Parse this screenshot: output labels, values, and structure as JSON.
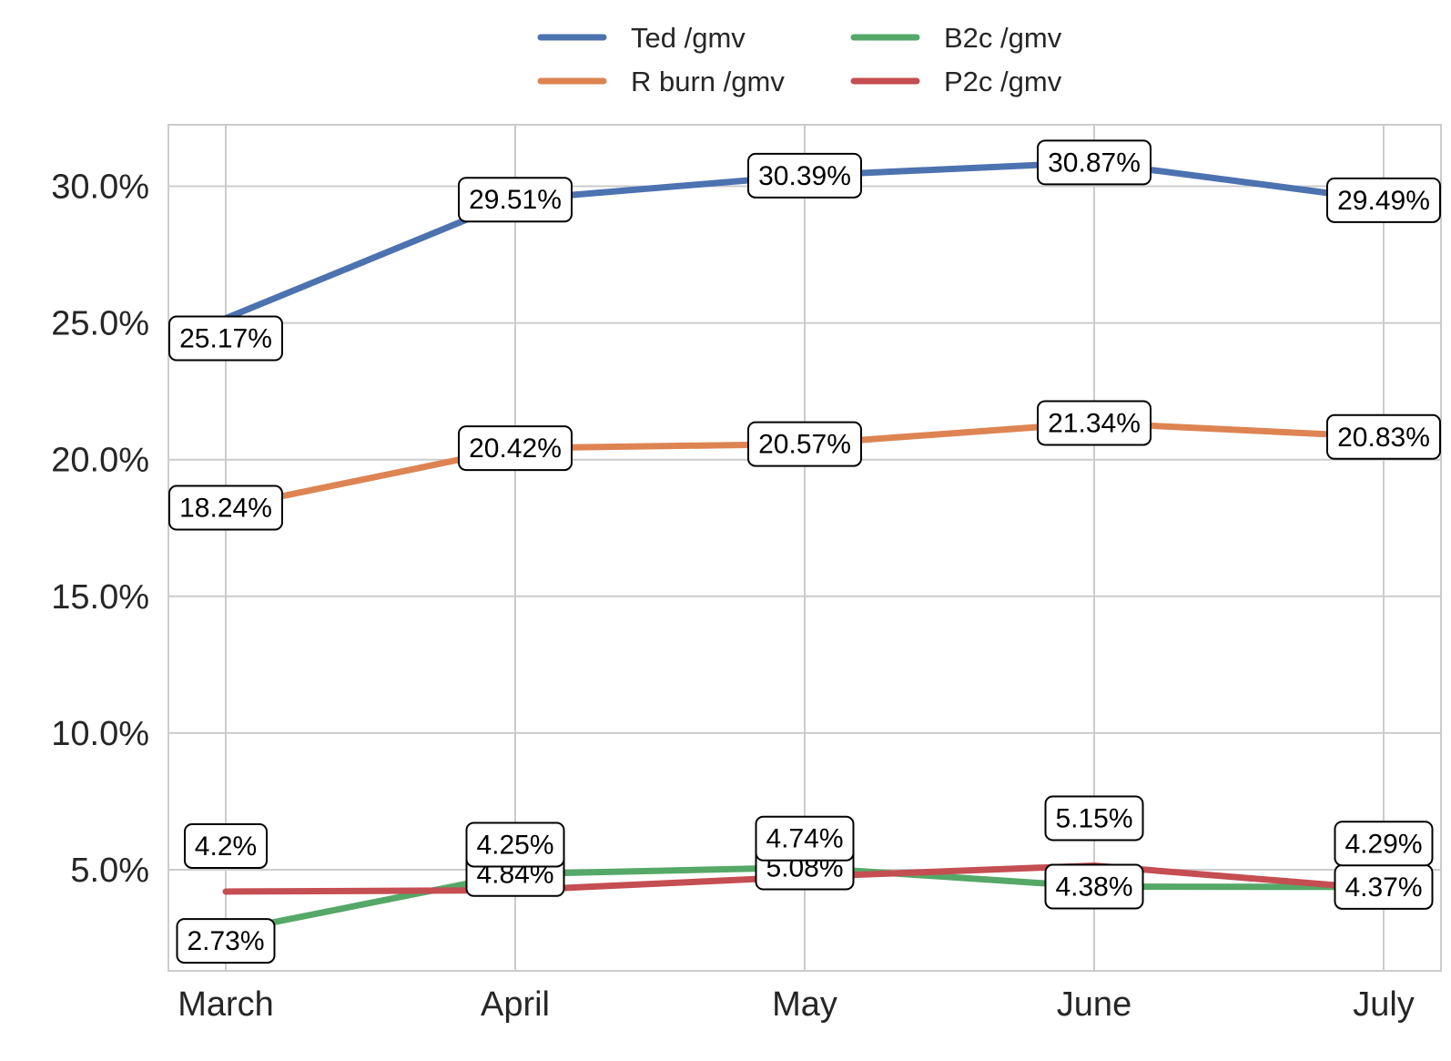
{
  "chart_data": {
    "type": "line",
    "title": "",
    "xlabel": "",
    "ylabel": "",
    "categories": [
      "March",
      "April",
      "May",
      "June",
      "July"
    ],
    "ylim": [
      0.013,
      0.3225
    ],
    "y_ticks": [
      0.05,
      0.1,
      0.15,
      0.2,
      0.25,
      0.3
    ],
    "y_tick_labels": [
      "5.0%",
      "10.0%",
      "15.0%",
      "20.0%",
      "25.0%",
      "30.0%"
    ],
    "grid": true,
    "legend_position": "top-center",
    "series": [
      {
        "name": "Ted /gmv",
        "color": "#4c72b0",
        "values": [
          0.2517,
          0.2951,
          0.3039,
          0.3087,
          0.2949
        ],
        "labels": [
          "25.17%",
          "29.51%",
          "30.39%",
          "30.87%",
          "29.49%"
        ]
      },
      {
        "name": "R burn /gmv",
        "color": "#dd8452",
        "values": [
          0.1824,
          0.2042,
          0.2057,
          0.2134,
          0.2083
        ],
        "labels": [
          "18.24%",
          "20.42%",
          "20.57%",
          "21.34%",
          "20.83%"
        ]
      },
      {
        "name": "B2c /gmv",
        "color": "#55a868",
        "values": [
          0.0273,
          0.0484,
          0.0508,
          0.0438,
          0.0437
        ],
        "labels": [
          "2.73%",
          "4.84%",
          "5.08%",
          "4.38%",
          "4.37%"
        ]
      },
      {
        "name": "P2c /gmv",
        "color": "#c44e52",
        "values": [
          0.042,
          0.0425,
          0.0474,
          0.0515,
          0.0429
        ],
        "labels": [
          "4.2%",
          "4.25%",
          "4.74%",
          "5.15%",
          "4.29%"
        ]
      }
    ]
  }
}
